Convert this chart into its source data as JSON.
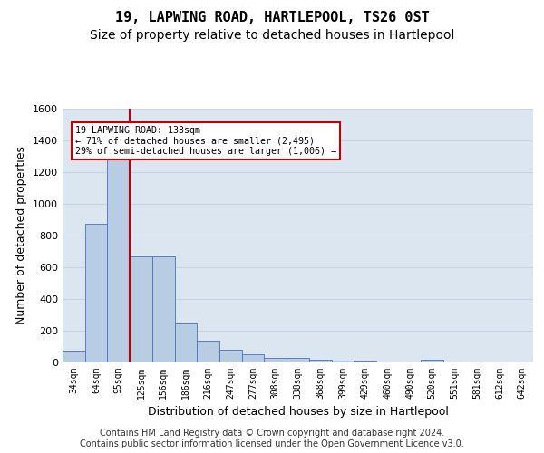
{
  "title": "19, LAPWING ROAD, HARTLEPOOL, TS26 0ST",
  "subtitle": "Size of property relative to detached houses in Hartlepool",
  "xlabel": "Distribution of detached houses by size in Hartlepool",
  "ylabel": "Number of detached properties",
  "categories": [
    "34sqm",
    "64sqm",
    "95sqm",
    "125sqm",
    "156sqm",
    "186sqm",
    "216sqm",
    "247sqm",
    "277sqm",
    "308sqm",
    "338sqm",
    "368sqm",
    "399sqm",
    "429sqm",
    "460sqm",
    "490sqm",
    "520sqm",
    "551sqm",
    "581sqm",
    "612sqm",
    "642sqm"
  ],
  "values": [
    75,
    875,
    1320,
    670,
    670,
    245,
    140,
    80,
    50,
    30,
    28,
    15,
    10,
    5,
    0,
    0,
    20,
    0,
    0,
    0,
    0
  ],
  "bar_color": "#b8cce4",
  "bar_edge_color": "#4472c4",
  "grid_color": "#c8d4e3",
  "background_color": "#dce6f1",
  "vline_x": 2.5,
  "vline_color": "#c00000",
  "annotation_text": "19 LAPWING ROAD: 133sqm\n← 71% of detached houses are smaller (2,495)\n29% of semi-detached houses are larger (1,006) →",
  "annotation_box_color": "#ffffff",
  "annotation_box_edge": "#c00000",
  "ylim": [
    0,
    1600
  ],
  "yticks": [
    0,
    200,
    400,
    600,
    800,
    1000,
    1200,
    1400,
    1600
  ],
  "footer": "Contains HM Land Registry data © Crown copyright and database right 2024.\nContains public sector information licensed under the Open Government Licence v3.0.",
  "title_fontsize": 11,
  "subtitle_fontsize": 10,
  "xlabel_fontsize": 9,
  "ylabel_fontsize": 9,
  "footer_fontsize": 7
}
